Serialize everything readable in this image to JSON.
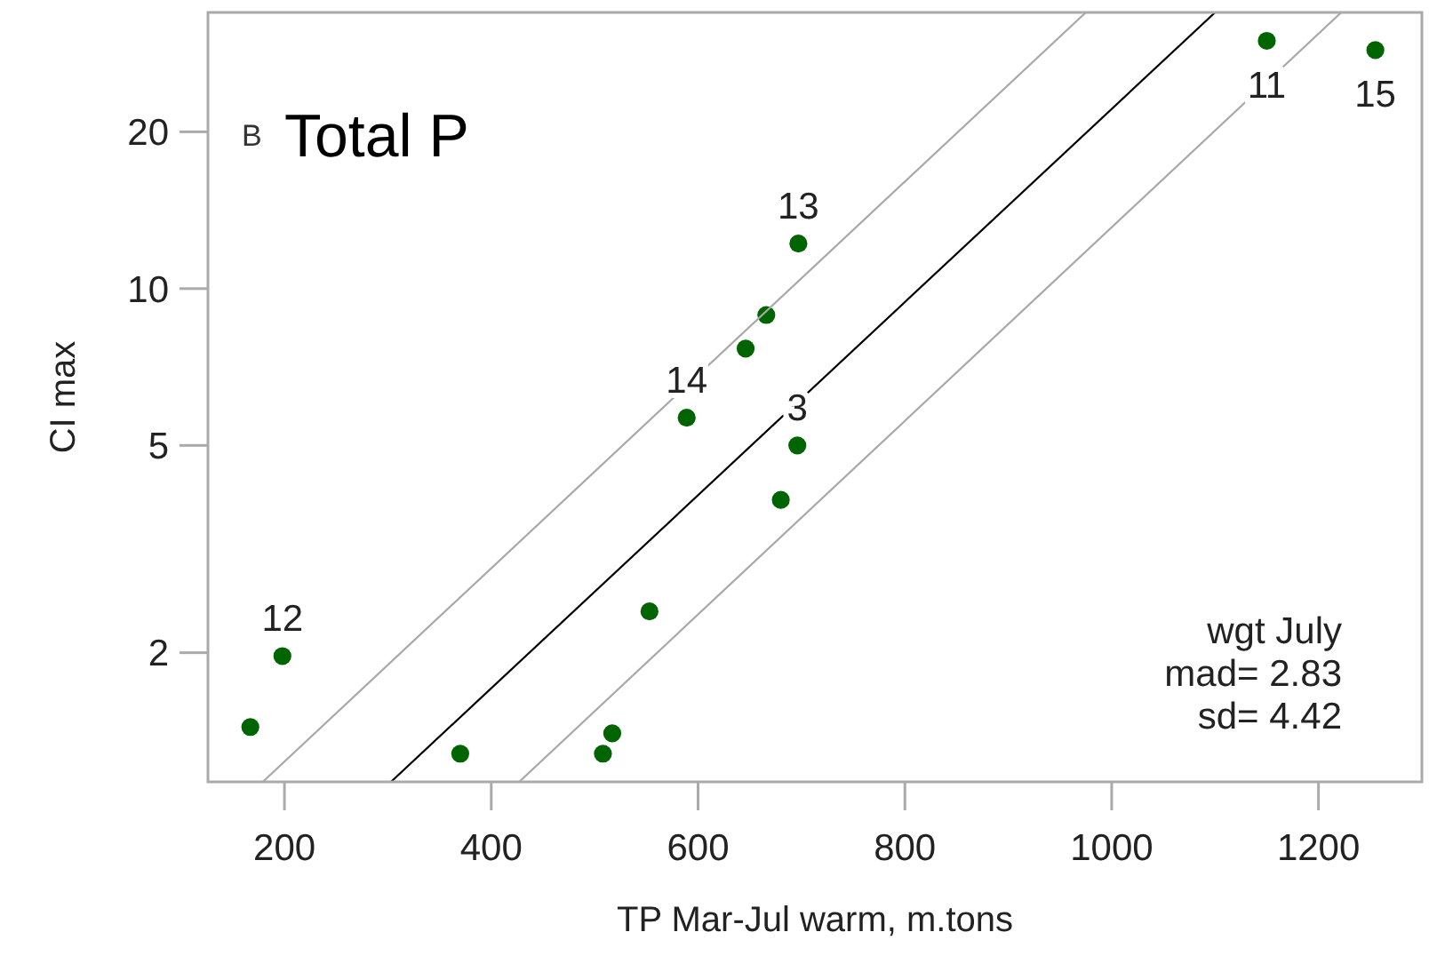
{
  "chart_data": {
    "type": "scatter",
    "title": "Total P",
    "xlabel": "TP Mar-Jul warm, m.tons",
    "ylabel": "CI max",
    "log": "y",
    "grid": false,
    "xlim": [
      126,
      1300
    ],
    "xticks": [
      200,
      400,
      600,
      800,
      1000,
      1200
    ],
    "ylim": [
      1.13,
      33.9
    ],
    "yticks": [
      2,
      5,
      10,
      20
    ],
    "series": [
      {
        "marker": "circle",
        "color": "#006400",
        "x": [
          167,
          198,
          370,
          508,
          517,
          553,
          680,
          696,
          589,
          646,
          666,
          697,
          1150,
          1255
        ],
        "values": [
          1.44,
          1.97,
          1.28,
          1.28,
          1.4,
          2.4,
          3.93,
          5.0,
          5.65,
          7.67,
          8.9,
          12.2,
          29.9,
          28.7
        ]
      },
      {
        "type": "line",
        "color": "#000000",
        "x": [
          303,
          1100
        ],
        "values": [
          1.13,
          33.9
        ]
      },
      {
        "type": "line",
        "color": "#a8a8a8",
        "x": [
          179,
          975
        ],
        "values": [
          1.13,
          33.9
        ]
      },
      {
        "type": "line",
        "color": "#a8a8a8",
        "x": [
          427,
          1222
        ],
        "values": [
          1.13,
          33.9
        ]
      }
    ],
    "annotations": [
      "B",
      "wgt July",
      "mad= 2.83",
      "sd= 4.42",
      {
        "text": "12",
        "x": 198,
        "y": 1.97
      },
      {
        "text": "14",
        "x": 589,
        "y": 5.65
      },
      {
        "text": "3",
        "x": 696,
        "y": 5.0
      },
      {
        "text": "13",
        "x": 697,
        "y": 12.2
      },
      {
        "text": "11",
        "x": 1150,
        "y": 29.9
      },
      {
        "text": "15",
        "x": 1255,
        "y": 28.7
      }
    ]
  }
}
